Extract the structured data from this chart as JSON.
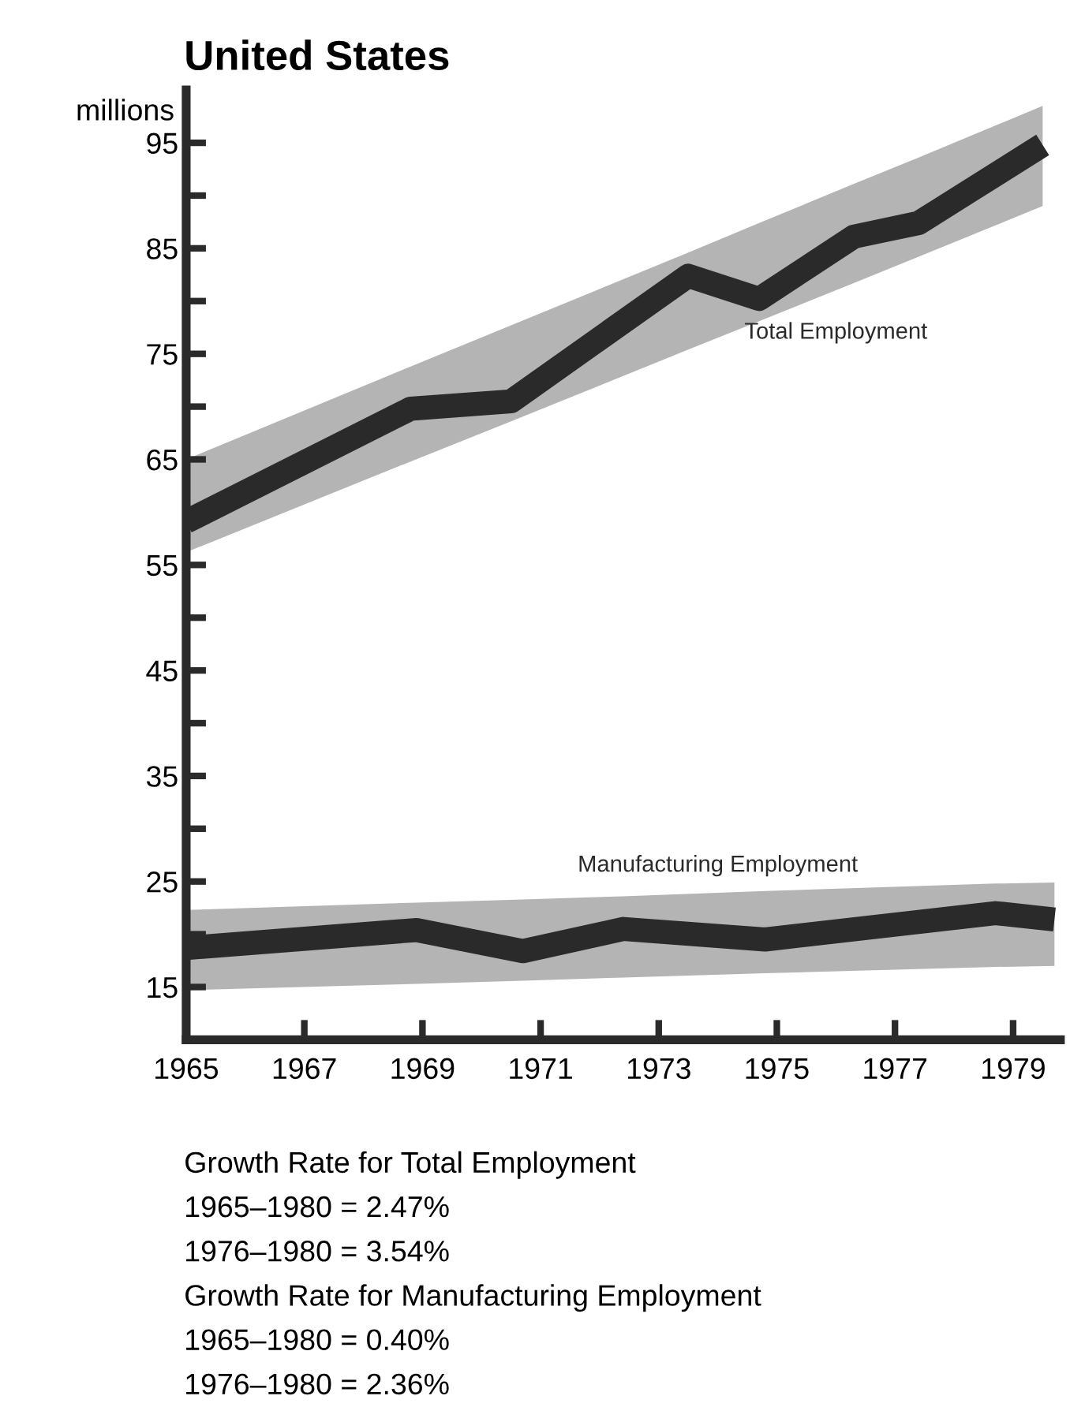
{
  "chart_data": {
    "type": "line",
    "title": "United States",
    "ylabel": "millions",
    "xlim": [
      1965,
      1979.8
    ],
    "xticks": [
      1965,
      1967,
      1969,
      1971,
      1973,
      1975,
      1977,
      1979
    ],
    "ylim": [
      10,
      100
    ],
    "yticks": [
      15,
      {
        "value": 20,
        "label": null
      },
      25,
      {
        "value": 30,
        "label": null
      },
      35,
      {
        "value": 40,
        "label": null
      },
      45,
      {
        "value": 50,
        "label": null
      },
      55,
      {
        "value": 60,
        "label": null
      },
      65,
      {
        "value": 70,
        "label": null
      },
      75,
      {
        "value": 80,
        "label": null
      },
      85,
      {
        "value": 90,
        "label": null
      },
      95
    ],
    "grid": false,
    "legend": false,
    "marker": "none",
    "line_style": "solid",
    "series": [
      {
        "name": "Total Employment",
        "color": "#2a2a2a",
        "x": [
          1965,
          1968.8,
          1970.5,
          1973.5,
          1974.7,
          1976.3,
          1977.4,
          1979.5
        ],
        "values": [
          59.1,
          69.8,
          70.5,
          82.4,
          80.2,
          86.1,
          87.4,
          94.8
        ],
        "lower": [
          56.2,
          64.8,
          68.6,
          75.4,
          78.1,
          81.7,
          84.2,
          89.0
        ],
        "upper": [
          65.0,
          73.8,
          77.7,
          84.6,
          87.4,
          91.1,
          93.6,
          98.5
        ]
      },
      {
        "name": "Manufacturing Employment",
        "color": "#2a2a2a",
        "x": [
          1965,
          1968.9,
          1970.7,
          1972.4,
          1974.8,
          1978.7,
          1979.7
        ],
        "values": [
          18.7,
          20.4,
          18.4,
          20.5,
          19.5,
          22.0,
          21.4
        ],
        "lower": [
          14.7,
          15.3,
          15.6,
          15.9,
          16.3,
          16.9,
          17.0
        ],
        "upper": [
          22.3,
          23.0,
          23.3,
          23.6,
          24.1,
          24.8,
          24.9
        ]
      }
    ],
    "annotations": [
      "Growth Rate for Total Employment",
      "1965–1980 = 2.47%",
      "1976–1980 = 3.54%",
      "Growth Rate for Manufacturing Employment",
      "1965–1980 = 0.40%",
      "1976–1980 = 2.36%"
    ]
  }
}
